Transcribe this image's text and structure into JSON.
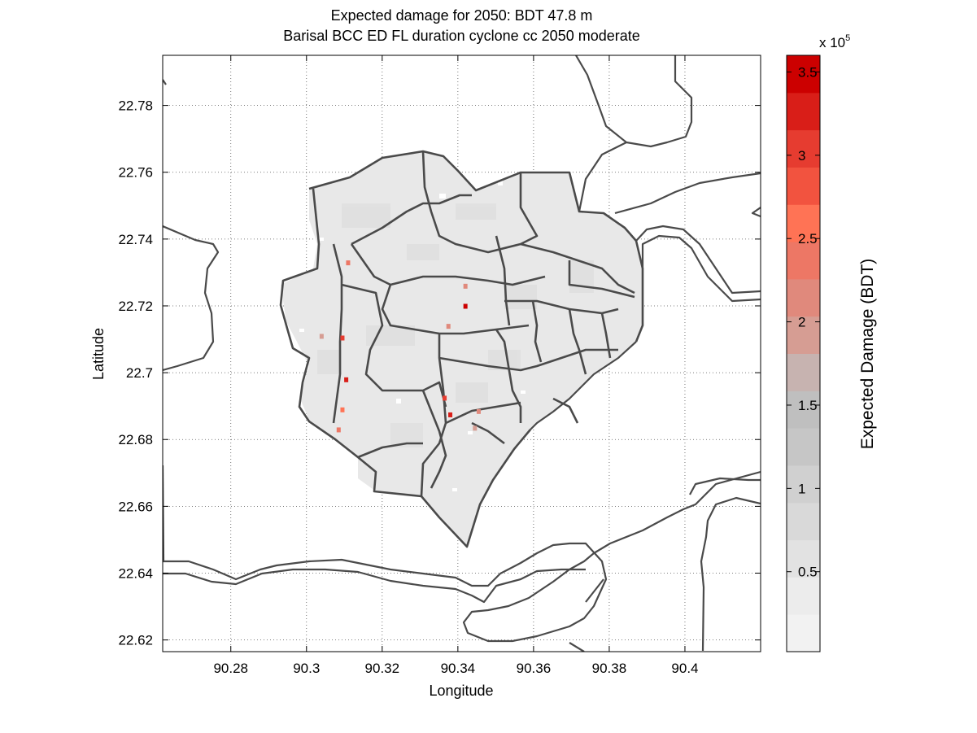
{
  "figure": {
    "title_line1": "Expected damage for 2050: BDT 47.8 m",
    "title_line2": "Barisal BCC ED FL duration cyclone cc 2050 moderate",
    "xlabel": "Longitude",
    "ylabel": "Latitude",
    "colorbar_label": "Expected Damage (BDT)",
    "colorbar_multiplier": "x 10",
    "colorbar_exponent": "5"
  },
  "chart_data": {
    "type": "heatmap",
    "title": "Expected damage for 2050: BDT 47.8 m",
    "subtitle": "Barisal BCC ED FL duration cyclone cc 2050 moderate",
    "xlabel": "Longitude",
    "ylabel": "Latitude",
    "xlim": [
      90.262,
      90.42
    ],
    "ylim": [
      22.6165,
      22.795
    ],
    "xticks": [
      90.28,
      90.3,
      90.32,
      90.34,
      90.36,
      90.38,
      90.4
    ],
    "xtick_labels": [
      "90.28",
      "90.3",
      "90.32",
      "90.34",
      "90.36",
      "90.38",
      "90.4"
    ],
    "yticks": [
      22.62,
      22.64,
      22.66,
      22.68,
      22.7,
      22.72,
      22.74,
      22.76,
      22.78
    ],
    "ytick_labels": [
      "22.62",
      "22.64",
      "22.66",
      "22.68",
      "22.7",
      "22.72",
      "22.74",
      "22.76",
      "22.78"
    ],
    "grid": true,
    "colorbar": {
      "label": "Expected Damage (BDT)",
      "scale_exponent": 5,
      "range": [
        0.02,
        3.6
      ],
      "ticks": [
        0.5,
        1,
        1.5,
        2,
        2.5,
        3,
        3.5
      ],
      "tick_labels": [
        "0.5",
        "1",
        "1.5",
        "2",
        "2.5",
        "3",
        "3.5"
      ],
      "colors_low_to_high": [
        "#f2f2f2",
        "#ececec",
        "#e2e2e2",
        "#d9d9d9",
        "#d0d0d0",
        "#c6c6c6",
        "#bfbfbf",
        "#c7b3b0",
        "#d69d93",
        "#e0897c",
        "#ed7765",
        "#ff7355",
        "#f2533f",
        "#e63c30",
        "#d91e18",
        "#cc0000"
      ]
    },
    "hotspots": [
      {
        "lon": 90.3095,
        "lat": 22.7105,
        "value": 3.0
      },
      {
        "lon": 90.3105,
        "lat": 22.698,
        "value": 3.2
      },
      {
        "lon": 90.3095,
        "lat": 22.689,
        "value": 2.6
      },
      {
        "lon": 90.3085,
        "lat": 22.683,
        "value": 2.3
      },
      {
        "lon": 90.311,
        "lat": 22.733,
        "value": 2.4
      },
      {
        "lon": 90.342,
        "lat": 22.72,
        "value": 3.5
      },
      {
        "lon": 90.342,
        "lat": 22.726,
        "value": 2.2
      },
      {
        "lon": 90.3365,
        "lat": 22.6925,
        "value": 3.0
      },
      {
        "lon": 90.338,
        "lat": 22.6875,
        "value": 3.3
      },
      {
        "lon": 90.3455,
        "lat": 22.6885,
        "value": 2.1
      },
      {
        "lon": 90.304,
        "lat": 22.711,
        "value": 2.0
      },
      {
        "lon": 90.3445,
        "lat": 22.6835,
        "value": 1.9
      },
      {
        "lon": 90.3375,
        "lat": 22.714,
        "value": 2.1
      }
    ]
  }
}
